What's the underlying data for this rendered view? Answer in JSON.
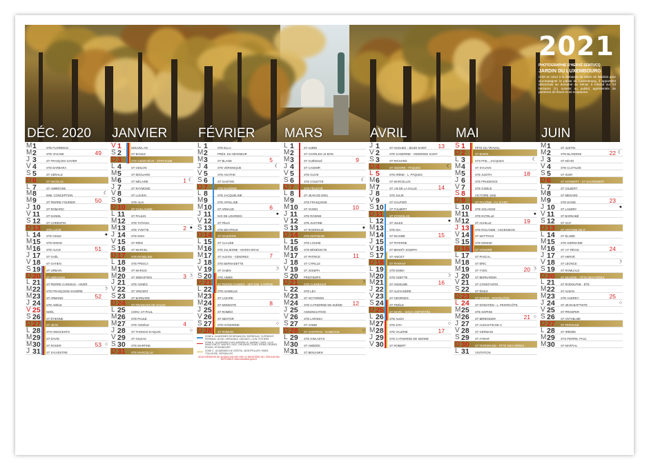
{
  "header": {
    "year": "2021",
    "photographer": "PHOTOGRAPHIE D'HERVÉ SENTUCQ",
    "place_title": "JARDIN DU LUXEMBOURG",
    "place_text": "Créé en 1612 à la demande de Marie de Médicis pour accompagner le palais du Luxembourg, il appartient désormais au domaine du Sénat. Il s'étend sur 23 hectares (21 ouverts au public) agrémentés de parterres de fleurs et de sculptures."
  },
  "colors": {
    "sunday_gold": "#b89a4c",
    "holiday_red": "#d42020",
    "zone_a": "#3a8fd8",
    "zone_b": "#d42020",
    "zone_c": "#e0b43c"
  },
  "months": [
    {
      "name": "DÉC. 2020",
      "letters": "MMJVSDLMMJVSDLMMJVSDLMMJVSDLMMJ",
      "holidays": [
        25
      ],
      "weeks": {
        "2": "49",
        "9": "50",
        "16": "51",
        "23": "52",
        "30": "53"
      },
      "moons": {
        "8": "☾",
        "14": "●",
        "22": "☽",
        "30": "○"
      },
      "zones": {
        "abc": [
          19,
          31
        ]
      },
      "saints": [
        "Ste Florence",
        "Ste Viviane",
        "St François-Xavier",
        "Ste Barbara",
        "St Gérald",
        "St Nicolas",
        "St Ambroise",
        "Imm. Conception",
        "St Pierre Fourier",
        "St Romaric",
        "St Daniel",
        "St Corentin",
        "Ste Lucie",
        "Ste Odile",
        "Ste Ninon",
        "Ste Alice",
        "St Gaël",
        "St Gatien",
        "St Urbain",
        "St Abraham",
        "St Pierre Canisius - Hiver",
        "Ste Françoise-Xavière",
        "St Armand",
        "Ste Adèle",
        "Noël",
        "St Étienne",
        "St Jean",
        "Sts Innocents",
        "St David",
        "St Roger",
        "St Sylvestre"
      ]
    },
    {
      "name": "JANVIER",
      "letters": "VSDLMMJVSDLMMJVSDLMMJVSDLMMJVSD",
      "holidays": [
        1
      ],
      "weeks": {
        "6": "1",
        "13": "2",
        "20": "3",
        "27": "4"
      },
      "moons": {
        "6": "☾",
        "13": "●",
        "20": "☽",
        "28": "○"
      },
      "zones": {
        "abc": [
          1,
          3
        ]
      },
      "saints": [
        "Nouvel An",
        "St Basile",
        "Ste Geneviève - Épiphanie",
        "St Odilon",
        "St Édouard",
        "St Mélaine",
        "St Raymond",
        "St Lucien",
        "Ste Alix",
        "St Guillaume",
        "St Paulin",
        "Ste Tatiana",
        "Ste Yvette",
        "Ste Nina",
        "St Rémi",
        "St Marcel",
        "Ste Roseline",
        "Ste Prisca",
        "St Marius",
        "St Sébastien",
        "Ste Agnès",
        "St Vincent",
        "St Barnard",
        "St François de Sales",
        "Conv. St Paul",
        "Ste Paule",
        "Ste Angèle",
        "St Thomas d'Aquin",
        "St Gildas",
        "Ste Martine",
        "Ste Marcelle"
      ]
    },
    {
      "name": "FÉVRIER",
      "letters": "LMMJVSDLMMJVSDLMMJVSDLMMJVSD",
      "holidays": [],
      "weeks": {
        "3": "5",
        "10": "6",
        "17": "7",
        "24": "8"
      },
      "moons": {
        "4": "☾",
        "11": "●",
        "19": "☽",
        "27": "○"
      },
      "zones": {
        "a": [
          6,
          22
        ],
        "b": [
          20,
          28
        ],
        "c": [
          13,
          28
        ]
      },
      "saints": [
        "Ste Ella",
        "Prés. du Seigneur",
        "St Blaise",
        "Ste Véronique",
        "Ste Agathe",
        "St Gaston",
        "Ste Eugénie",
        "Ste Jacqueline",
        "Ste Apolline",
        "St Arnaud",
        "N-D de Lourdes",
        "St Félix",
        "Ste Béatrice",
        "St Valentin",
        "St Claude",
        "Ste Julienne - Mardi Gras",
        "St Alexis - Cendres",
        "Ste Bernadette",
        "St Gabin",
        "Ste Aimée",
        "St Pierre Damien - 1er dim. Carême",
        "Ste Isabelle",
        "St Lazare",
        "St Modeste",
        "St Roméo",
        "St Nestor",
        "Ste Honorine",
        "St Romain"
      ]
    },
    {
      "name": "MARS",
      "letters": "LMMJVSDLMMJVSDLMMJVSDLMMJVSDLMM",
      "holidays": [],
      "weeks": {
        "3": "9",
        "10": "10",
        "17": "11",
        "24": "12"
      },
      "moons": {
        "6": "☾",
        "13": "●",
        "21": "☽",
        "28": "○"
      },
      "zones": {
        "b": [
          1,
          8
        ]
      },
      "saints": [
        "St Aubin",
        "St Charles le Bon",
        "St Guénolé",
        "St Casimir",
        "Ste Olive",
        "Ste Colette",
        "Ste Félicité",
        "St Jean de Dieu",
        "Ste Françoise",
        "St Vivien",
        "Ste Rosine",
        "Ste Justine",
        "St Rodrigue",
        "Ste Mathilde",
        "Ste Louise",
        "Ste Bénédicte",
        "St Patrice",
        "St Cyrille",
        "St Joseph",
        "Printemps",
        "Ste Clémence",
        "Ste Léa",
        "St Victorien",
        "Ste Catherine de Suède",
        "Annonciation",
        "Ste Larissa",
        "St Habib",
        "St Gontran - Rameaux",
        "Ste Gwladys",
        "St Amédée",
        "St Benjamin"
      ]
    },
    {
      "name": "AVRIL",
      "letters": "JVSDLMMJVSDLMMJVSDLMMJVSDLMMJV",
      "holidays": [
        5
      ],
      "weeks": {
        "1": "13",
        "7": "14",
        "14": "15",
        "21": "16",
        "28": "17"
      },
      "moons": {
        "4": "☾",
        "12": "●",
        "20": "☽",
        "27": "○"
      },
      "zones": {
        "a": [
          10,
          26
        ],
        "b": [
          24,
          30
        ],
        "c": [
          17,
          30
        ]
      },
      "saints": [
        "St Hugues - Jeudi Saint",
        "Ste Sandrine - Vendredi Saint",
        "St Richard",
        "St Isidore - Pâques",
        "Ste Irène - L. Pâques",
        "St Marcellin",
        "St J-B de la Salle",
        "Ste Julie",
        "St Gautier",
        "St Fulbert",
        "St Stanislas",
        "St Jules",
        "Ste Ida",
        "St Maxime",
        "St Paterne",
        "St Benoît-Joseph",
        "St Anicet",
        "St Parfait",
        "Ste Emma",
        "Ste Odette",
        "St Anselme",
        "St Alexandre",
        "St Georges",
        "St Fidèle",
        "St Marc - Souv. Déportés",
        "Ste Alida",
        "Ste Zita",
        "Ste Valérie",
        "Ste Catherine de Sienne",
        "St Robert"
      ]
    },
    {
      "name": "MAI",
      "letters": "SDLMMJVSDLMMJVSDLMMJVSDLMMJVSDL",
      "holidays": [
        1,
        8,
        13,
        24
      ],
      "weeks": {
        "5": "18",
        "12": "19",
        "19": "20",
        "26": "21"
      },
      "moons": {
        "3": "☾",
        "11": "●",
        "19": "☽",
        "26": "○"
      },
      "zones": {
        "b": [
          1,
          10
        ],
        "c": [
          1,
          3
        ],
        "abc": [
          13,
          16
        ]
      },
      "saints": [
        "Fête du Travail",
        "St Boris",
        "Sts Phil., Jacques",
        "St Sylvain",
        "Ste Judith",
        "Ste Prudence",
        "Ste Gisèle",
        "Victoire 1945",
        "St Pacôme - Fj. d'Arc",
        "Ste Solange",
        "Ste Estelle",
        "St Achille",
        "Ste Rolande - Ascension",
        "St Matthias",
        "Ste Denise",
        "St Honoré",
        "St Pascal",
        "St Éric",
        "St Yves",
        "St Bernardin",
        "St Constantin",
        "St Émile",
        "St Didier - Pentecôte",
        "St Donatien - L. Pentecôte",
        "Ste Sophie",
        "St Bérenger",
        "St Augustin de C.",
        "St Germain",
        "St Aymar",
        "St Ferdinand - Fête des Mères",
        "Visitation"
      ]
    },
    {
      "name": "JUIN",
      "letters": "MMJVSDLMMJVSDLMMJVSDLMMJVSDLMM",
      "holidays": [],
      "weeks": {
        "2": "22",
        "9": "23",
        "16": "24",
        "23": "25"
      },
      "moons": {
        "2": "☾",
        "10": "●",
        "18": "☽",
        "24": "○"
      },
      "zones": {},
      "saints": [
        "St Justin",
        "Ste Blandine",
        "St Kévin",
        "Ste Clotilde",
        "St Igor",
        "St Norbert - St Sacrement",
        "St Gilbert",
        "St Médard",
        "Ste Diane",
        "St Landry",
        "St Barnabé",
        "St Guy",
        "St Antoine de P.",
        "St Élisée",
        "Ste Germaine",
        "St J-F Régis",
        "St Hervé",
        "St Léonce",
        "St Romuald",
        "St Silvère - Fête des Pères",
        "St Rodolphe - Été",
        "St Alban",
        "Ste Audrey",
        "St Jean-Baptiste",
        "St Prosper",
        "St Anthelme",
        "St Fernand",
        "St Irénée",
        "Sts Pierre, Paul",
        "St Martial"
      ]
    }
  ],
  "legend": {
    "zone_a": "ZONE A : ACADÉMIES DE BESANÇON, BORDEAUX, CLERMONT-FERRAND, DIJON, GRENOBLE, LIMOGES, LYON, POITIERS",
    "zone_b": "ZONE B : ACADÉMIES D'AIX-MARSEILLE, AMIENS, CAEN, LILLE, NANCY-METZ, NANTES, NICE, ORLÉANS-TOURS, REIMS, RENNES, ROUEN, STRASBOURG",
    "zone_c": "ZONE C : ACADÉMIES DE CRÉTEIL, MONTPELLIER, PARIS, TOULOUSE, VERSAILLES",
    "note": "SOUS RÉSERVE DE MODIFICATIONS PAR LE MINISTÈRE DE L'ÉDUCATION NATIONALE www.education.gouv.fr"
  }
}
